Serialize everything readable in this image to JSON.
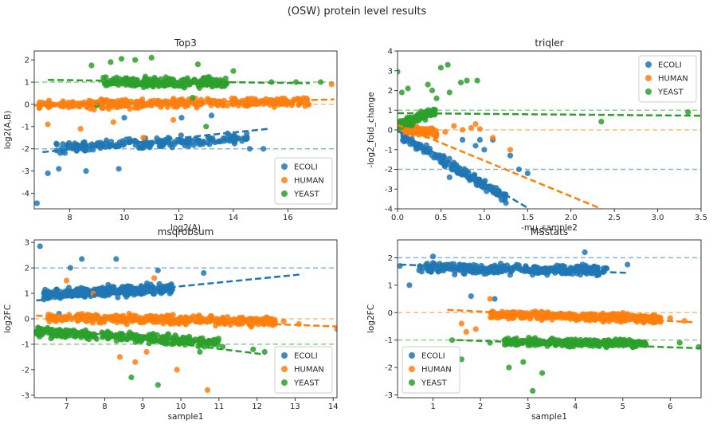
{
  "figure_title": "(OSW) protein level results",
  "colors": {
    "ECOLI": "#1f77b4",
    "HUMAN": "#ff7f0e",
    "YEAST": "#2ca02c"
  },
  "chart_data": [
    {
      "id": "top3",
      "type": "scatter",
      "title": "Top3",
      "xlabel": "log2(A)",
      "ylabel": "log2(A,B)",
      "xlim": [
        6.7,
        17.8
      ],
      "ylim": [
        -4.7,
        2.4
      ],
      "xticks": [
        8,
        10,
        12,
        14,
        16
      ],
      "yticks": [
        -4,
        -3,
        -2,
        -1,
        0,
        1,
        2
      ],
      "legend": {
        "position": "lower-right",
        "entries": [
          "ECOLI",
          "HUMAN",
          "YEAST"
        ]
      },
      "reference_lines": {
        "ECOLI": -2,
        "HUMAN": 0,
        "YEAST": 1
      },
      "series": [
        {
          "name": "ECOLI",
          "cloud": {
            "x": [
              7.5,
              14.5
            ],
            "y_center": -1.85,
            "spread": 0.35,
            "n": 200
          },
          "fit": [
            [
              7.0,
              -2.15
            ],
            [
              15.3,
              -1.1
            ]
          ],
          "outliers": [
            [
              6.8,
              -4.45
            ],
            [
              7.2,
              -3.1
            ],
            [
              7.6,
              -2.9
            ],
            [
              8.6,
              -3.0
            ],
            [
              9.8,
              -2.9
            ],
            [
              10.0,
              -0.6
            ],
            [
              12.1,
              -0.6
            ],
            [
              13.2,
              -0.5
            ],
            [
              14.6,
              -2.0
            ],
            [
              15.1,
              -2.0
            ]
          ]
        },
        {
          "name": "HUMAN",
          "cloud": {
            "x": [
              6.8,
              16.8
            ],
            "y_center": 0.05,
            "spread": 0.3,
            "n": 360
          },
          "fit": [
            [
              6.7,
              -0.05
            ],
            [
              17.7,
              0.22
            ]
          ],
          "outliers": [
            [
              7.2,
              -0.9
            ],
            [
              8.4,
              -1.1
            ],
            [
              9.6,
              -0.8
            ],
            [
              10.7,
              -1.5
            ],
            [
              11.8,
              -0.7
            ],
            [
              12.9,
              0.9
            ],
            [
              15.8,
              0.1
            ],
            [
              17.6,
              0.9
            ]
          ]
        },
        {
          "name": "YEAST",
          "cloud": {
            "x": [
              9.2,
              13.8
            ],
            "y_center": 0.95,
            "spread": 0.3,
            "n": 240
          },
          "fit": [
            [
              7.2,
              1.1
            ],
            [
              16.8,
              0.95
            ]
          ],
          "outliers": [
            [
              8.8,
              1.75
            ],
            [
              9.5,
              1.9
            ],
            [
              9.9,
              2.05
            ],
            [
              10.4,
              2.0
            ],
            [
              11.0,
              2.1
            ],
            [
              12.7,
              1.8
            ],
            [
              14.0,
              1.5
            ],
            [
              15.4,
              1.0
            ],
            [
              16.3,
              1.0
            ],
            [
              17.2,
              1.0
            ],
            [
              9.0,
              -0.05
            ],
            [
              13.0,
              -1.0
            ],
            [
              12.5,
              0.3
            ]
          ]
        }
      ]
    },
    {
      "id": "triqler",
      "type": "scatter",
      "title": "triqler",
      "xlabel": "-mu_sample2",
      "ylabel": "-log2_fold_change",
      "xlim": [
        0.0,
        3.5
      ],
      "ylim": [
        -4.0,
        4.0
      ],
      "xticks": [
        0.0,
        0.5,
        1.0,
        1.5,
        2.0,
        2.5,
        3.0,
        3.5
      ],
      "yticks": [
        -4,
        -3,
        -2,
        -1,
        0,
        1,
        2,
        3,
        4
      ],
      "legend": {
        "position": "upper-right",
        "entries": [
          "ECOLI",
          "HUMAN",
          "YEAST"
        ]
      },
      "reference_lines": {
        "ECOLI": -2,
        "HUMAN": 0,
        "YEAST": 1
      },
      "series": [
        {
          "name": "ECOLI",
          "band": {
            "x": [
              0.05,
              1.25
            ],
            "y_start": -0.2,
            "slope": -2.6,
            "spread": 0.35,
            "n": 170
          },
          "fit": [
            [
              0.0,
              -0.05
            ],
            [
              1.5,
              -3.95
            ]
          ],
          "outliers": [
            [
              0.75,
              -0.5
            ],
            [
              0.9,
              -0.8
            ],
            [
              0.95,
              -0.5
            ],
            [
              1.0,
              -1.0
            ],
            [
              1.1,
              -0.5
            ],
            [
              1.3,
              -1.3
            ],
            [
              1.4,
              -2.0
            ],
            [
              1.5,
              -2.2
            ],
            [
              1.25,
              -3.7
            ],
            [
              0.6,
              -2.4
            ]
          ]
        },
        {
          "name": "HUMAN",
          "band": {
            "x": [
              0.0,
              0.45
            ],
            "y_start": 0.1,
            "slope": -0.6,
            "spread": 0.25,
            "n": 150
          },
          "fit": [
            [
              0.0,
              0.25
            ],
            [
              2.35,
              -4.0
            ]
          ],
          "outliers": [
            [
              0.45,
              -0.2
            ],
            [
              0.55,
              -0.1
            ],
            [
              0.65,
              0.2
            ],
            [
              0.75,
              0.0
            ],
            [
              0.85,
              0.1
            ],
            [
              0.95,
              0.05
            ],
            [
              1.1,
              -0.4
            ],
            [
              1.3,
              -1.0
            ],
            [
              0.9,
              0.3
            ]
          ]
        },
        {
          "name": "YEAST",
          "band": {
            "x": [
              0.0,
              0.45
            ],
            "y_start": 0.2,
            "slope": 1.8,
            "spread": 0.3,
            "n": 140
          },
          "fit": [
            [
              0.0,
              0.85
            ],
            [
              3.5,
              0.72
            ]
          ],
          "outliers": [
            [
              0.0,
              2.95
            ],
            [
              0.05,
              1.9
            ],
            [
              0.12,
              2.1
            ],
            [
              0.35,
              2.3
            ],
            [
              0.4,
              2.0
            ],
            [
              0.5,
              3.15
            ],
            [
              0.58,
              3.3
            ],
            [
              0.73,
              2.4
            ],
            [
              0.8,
              2.5
            ],
            [
              0.92,
              2.5
            ],
            [
              0.6,
              1.9
            ],
            [
              0.45,
              1.6
            ],
            [
              2.35,
              0.42
            ],
            [
              3.35,
              0.9
            ]
          ]
        }
      ]
    },
    {
      "id": "msqrobsum",
      "type": "scatter",
      "title": "msqrobsum",
      "xlabel": "sample1",
      "ylabel": "log2FC",
      "xlim": [
        6.15,
        14.1
      ],
      "ylim": [
        -3.1,
        3.1
      ],
      "xticks": [
        7,
        8,
        9,
        10,
        11,
        12,
        13,
        14
      ],
      "yticks": [
        -3,
        -2,
        -1,
        0,
        1,
        2,
        3
      ],
      "legend": {
        "position": "lower-right",
        "entries": [
          "ECOLI",
          "HUMAN",
          "YEAST"
        ]
      },
      "reference_lines": {
        "ECOLI": 2,
        "HUMAN": 0,
        "YEAST": -1
      },
      "series": [
        {
          "name": "ECOLI",
          "cloud": {
            "x": [
              6.4,
              9.8
            ],
            "y_center": 1.15,
            "spread": 0.3,
            "n": 300
          },
          "fit": [
            [
              6.2,
              0.72
            ],
            [
              13.2,
              1.75
            ]
          ],
          "outliers": [
            [
              6.3,
              2.85
            ],
            [
              7.1,
              2.0
            ],
            [
              7.4,
              2.35
            ],
            [
              8.3,
              2.35
            ],
            [
              9.4,
              1.9
            ],
            [
              10.6,
              1.8
            ],
            [
              6.8,
              0.2
            ]
          ]
        },
        {
          "name": "HUMAN",
          "cloud": {
            "x": [
              6.5,
              12.5
            ],
            "y_center": 0.0,
            "spread": 0.25,
            "n": 380
          },
          "fit": [
            [
              6.2,
              0.12
            ],
            [
              14.1,
              -0.3
            ]
          ],
          "outliers": [
            [
              7.0,
              1.5
            ],
            [
              7.7,
              1.0
            ],
            [
              8.4,
              -1.5
            ],
            [
              8.8,
              -1.7
            ],
            [
              9.1,
              -1.3
            ],
            [
              9.3,
              1.6
            ],
            [
              9.9,
              -2.0
            ],
            [
              10.7,
              -2.8
            ],
            [
              12.7,
              -0.1
            ],
            [
              13.1,
              -0.2
            ],
            [
              14.1,
              -0.4
            ]
          ]
        },
        {
          "name": "YEAST",
          "cloud": {
            "x": [
              6.2,
              11.0
            ],
            "y_center": -0.7,
            "spread": 0.25,
            "n": 320
          },
          "fit": [
            [
              6.2,
              -0.3
            ],
            [
              12.2,
              -1.4
            ]
          ],
          "outliers": [
            [
              8.7,
              -2.3
            ],
            [
              9.4,
              -2.6
            ],
            [
              10.5,
              -1.3
            ],
            [
              11.1,
              -1.1
            ],
            [
              11.9,
              -1.2
            ],
            [
              12.2,
              -1.3
            ]
          ]
        }
      ]
    },
    {
      "id": "msstats",
      "type": "scatter",
      "title": "MSstats",
      "xlabel": "sample1",
      "ylabel": "log2FC",
      "xlim": [
        0.25,
        6.65
      ],
      "ylim": [
        -3.1,
        2.65
      ],
      "xticks": [
        1,
        2,
        3,
        4,
        5,
        6
      ],
      "yticks": [
        -3,
        -2,
        -1,
        0,
        1,
        2
      ],
      "legend": {
        "position": "lower-left",
        "entries": [
          "ECOLI",
          "HUMAN",
          "YEAST"
        ]
      },
      "reference_lines": {
        "ECOLI": 2,
        "HUMAN": 0,
        "YEAST": -1
      },
      "series": [
        {
          "name": "ECOLI",
          "cloud": {
            "x": [
              0.7,
              4.7
            ],
            "y_center": 1.55,
            "spread": 0.25,
            "n": 340
          },
          "fit": [
            [
              0.3,
              1.75
            ],
            [
              5.1,
              1.45
            ]
          ],
          "outliers": [
            [
              0.3,
              1.7
            ],
            [
              0.5,
              1.0
            ],
            [
              1.0,
              2.05
            ],
            [
              1.8,
              0.6
            ],
            [
              2.3,
              0.5
            ],
            [
              5.1,
              1.75
            ],
            [
              4.2,
              2.2
            ]
          ]
        },
        {
          "name": "HUMAN",
          "cloud": {
            "x": [
              2.2,
              5.8
            ],
            "y_center": -0.15,
            "spread": 0.2,
            "n": 420
          },
          "fit": [
            [
              1.3,
              0.1
            ],
            [
              6.5,
              -0.35
            ]
          ],
          "outliers": [
            [
              1.6,
              -0.4
            ],
            [
              1.7,
              -0.7
            ],
            [
              1.9,
              -0.6
            ],
            [
              2.2,
              0.5
            ],
            [
              6.0,
              -0.2
            ],
            [
              6.3,
              -0.3
            ]
          ]
        },
        {
          "name": "YEAST",
          "cloud": {
            "x": [
              2.5,
              5.5
            ],
            "y_center": -1.05,
            "spread": 0.2,
            "n": 340
          },
          "fit": [
            [
              1.5,
              -1.0
            ],
            [
              6.65,
              -1.3
            ]
          ],
          "outliers": [
            [
              1.4,
              -1.0
            ],
            [
              1.6,
              -1.7
            ],
            [
              2.2,
              -1.1
            ],
            [
              2.6,
              -2.0
            ],
            [
              2.9,
              -1.8
            ],
            [
              3.1,
              -2.85
            ],
            [
              3.3,
              -2.2
            ],
            [
              6.2,
              -1.1
            ],
            [
              6.6,
              -1.25
            ]
          ]
        }
      ]
    }
  ]
}
